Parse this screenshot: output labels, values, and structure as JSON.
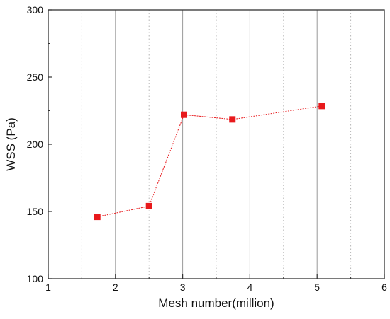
{
  "chart_data": {
    "type": "line",
    "title": "",
    "xlabel": "Mesh number(million)",
    "ylabel": "WSS (Pa)",
    "xlim": [
      1,
      6
    ],
    "ylim": [
      100,
      300
    ],
    "x_ticks": [
      "1",
      "2",
      "3",
      "4",
      "5",
      "6"
    ],
    "y_ticks": [
      "100",
      "150",
      "200",
      "250",
      "300"
    ],
    "grid": {
      "major_x": true,
      "minor_x_dotted": true,
      "y": false
    },
    "legend": "none",
    "series": [
      {
        "marker": "square",
        "color": "#e8191c",
        "x": [
          1.73,
          2.5,
          3.02,
          3.74,
          5.07
        ],
        "y": [
          146,
          154,
          222,
          218.5,
          228.5
        ]
      }
    ]
  }
}
